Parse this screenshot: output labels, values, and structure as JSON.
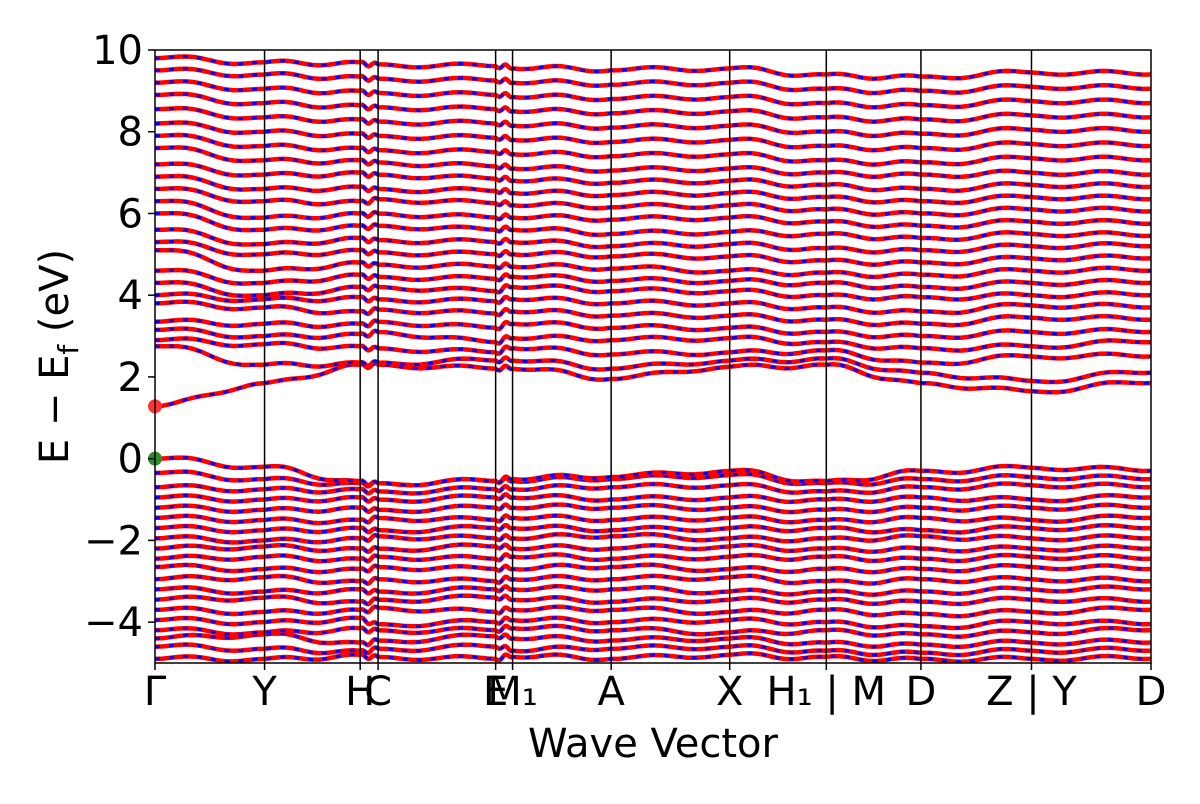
{
  "chart_data": {
    "type": "line",
    "title": "",
    "xlabel": "Wave Vector",
    "ylabel": "E − E_f (eV)",
    "ylabel_parts": {
      "main": "E − E",
      "sub": "f",
      "unit": "(eV)"
    },
    "ylim": [
      -5,
      10
    ],
    "yticks": [
      -4,
      -2,
      0,
      2,
      4,
      6,
      8,
      10
    ],
    "ytick_labels": [
      "−4",
      "−2",
      "0",
      "2",
      "4",
      "6",
      "8",
      "10"
    ],
    "xlim": [
      0,
      1
    ],
    "kpoints": [
      {
        "label": "Γ",
        "x": 0.0
      },
      {
        "label": "Y",
        "x": 0.11
      },
      {
        "label": "H",
        "x": 0.206
      },
      {
        "label": "C",
        "x": 0.224
      },
      {
        "label": "E",
        "x": 0.342
      },
      {
        "label": "M₁",
        "x": 0.359
      },
      {
        "label": "A",
        "x": 0.458
      },
      {
        "label": "X",
        "x": 0.577
      },
      {
        "label": "H₁ | M",
        "x": 0.674
      },
      {
        "label": "D",
        "x": 0.769
      },
      {
        "label": "Z | Y",
        "x": 0.88
      },
      {
        "label": "D",
        "x": 1.0
      }
    ],
    "vertical_lines_x": [
      0.11,
      0.206,
      0.224,
      0.342,
      0.359,
      0.458,
      0.577,
      0.674,
      0.769,
      0.88
    ],
    "series": [
      {
        "color": "#ff0000",
        "style": "solid"
      },
      {
        "color": "#0000ff",
        "style": "dashed"
      }
    ],
    "markers": [
      {
        "label": "CBM",
        "x": 0.0,
        "y": 1.28,
        "color": "#ff3333"
      },
      {
        "label": "VBM",
        "x": 0.0,
        "y": 0.0,
        "color": "#2e8b2e"
      }
    ],
    "bands": [
      [
        -4.9,
        -4.9,
        -4.8,
        -4.85,
        -4.9,
        -4.85,
        -4.9,
        -4.8,
        -4.85,
        -4.9,
        -4.9,
        -4.9
      ],
      [
        -4.6,
        -4.65,
        -4.7,
        -4.65,
        -4.6,
        -4.7,
        -4.65,
        -4.6,
        -4.7,
        -4.75,
        -4.7,
        -4.7
      ],
      [
        -4.4,
        -4.3,
        -4.5,
        -4.45,
        -4.35,
        -4.4,
        -4.45,
        -4.4,
        -4.5,
        -4.55,
        -4.5,
        -4.5
      ],
      [
        -4.2,
        -4.25,
        -4.15,
        -4.2,
        -4.2,
        -4.15,
        -4.2,
        -4.25,
        -4.2,
        -4.3,
        -4.25,
        -4.2
      ],
      [
        -3.95,
        -4.0,
        -3.9,
        -4.05,
        -4.0,
        -3.95,
        -4.0,
        -3.95,
        -4.0,
        -4.1,
        -4.0,
        -4.05
      ],
      [
        -3.7,
        -3.75,
        -3.7,
        -3.65,
        -3.75,
        -3.7,
        -3.7,
        -3.75,
        -3.7,
        -3.8,
        -3.75,
        -3.7
      ],
      [
        -3.45,
        -3.4,
        -3.5,
        -3.45,
        -3.4,
        -3.45,
        -3.5,
        -3.45,
        -3.45,
        -3.5,
        -3.45,
        -3.5
      ],
      [
        -3.2,
        -3.25,
        -3.2,
        -3.25,
        -3.2,
        -3.2,
        -3.2,
        -3.25,
        -3.25,
        -3.25,
        -3.2,
        -3.2
      ],
      [
        -2.95,
        -2.9,
        -3.0,
        -2.95,
        -3.0,
        -2.95,
        -2.95,
        -2.9,
        -3.0,
        -2.95,
        -2.95,
        -3.0
      ],
      [
        -2.65,
        -2.7,
        -2.7,
        -2.65,
        -2.7,
        -2.7,
        -2.65,
        -2.7,
        -2.7,
        -2.7,
        -2.65,
        -2.7
      ],
      [
        -2.45,
        -2.4,
        -2.45,
        -2.4,
        -2.45,
        -2.4,
        -2.45,
        -2.4,
        -2.4,
        -2.45,
        -2.4,
        -2.45
      ],
      [
        -2.2,
        -2.15,
        -2.2,
        -2.2,
        -2.15,
        -2.2,
        -2.2,
        -2.15,
        -2.2,
        -2.2,
        -2.2,
        -2.2
      ],
      [
        -1.95,
        -2.0,
        -1.95,
        -1.9,
        -1.95,
        -1.95,
        -1.9,
        -1.95,
        -1.95,
        -1.9,
        -1.95,
        -1.95
      ],
      [
        -1.7,
        -1.75,
        -1.7,
        -1.75,
        -1.7,
        -1.7,
        -1.75,
        -1.7,
        -1.7,
        -1.75,
        -1.7,
        -1.7
      ],
      [
        -1.45,
        -1.5,
        -1.5,
        -1.45,
        -1.5,
        -1.45,
        -1.5,
        -1.45,
        -1.5,
        -1.45,
        -1.5,
        -1.45
      ],
      [
        -1.2,
        -1.25,
        -1.2,
        -1.25,
        -1.2,
        -1.2,
        -1.2,
        -1.2,
        -1.25,
        -1.2,
        -1.2,
        -1.2
      ],
      [
        -0.95,
        -1.0,
        -0.95,
        -1.0,
        -0.95,
        -0.95,
        -1.0,
        -0.95,
        -1.0,
        -0.95,
        -1.0,
        -0.95
      ],
      [
        -0.7,
        -0.75,
        -0.75,
        -0.8,
        -0.75,
        -0.75,
        -0.7,
        -0.65,
        -0.8,
        -0.7,
        -0.65,
        -0.7
      ],
      [
        -0.35,
        -0.5,
        -0.6,
        -0.6,
        -0.55,
        -0.55,
        -0.5,
        -0.4,
        -0.6,
        -0.5,
        -0.45,
        -0.5
      ],
      [
        0.0,
        -0.2,
        -0.55,
        -0.6,
        -0.55,
        -0.5,
        -0.45,
        -0.3,
        -0.55,
        -0.3,
        -0.22,
        -0.3
      ],
      [
        1.28,
        1.85,
        2.3,
        2.3,
        2.2,
        2.2,
        1.95,
        2.25,
        2.3,
        1.85,
        1.65,
        1.85
      ],
      [
        2.75,
        2.3,
        2.35,
        2.35,
        2.4,
        2.4,
        2.2,
        2.4,
        2.45,
        2.1,
        1.9,
        2.1
      ],
      [
        2.9,
        2.8,
        2.75,
        2.7,
        2.6,
        2.7,
        2.55,
        2.6,
        2.65,
        2.35,
        2.5,
        2.5
      ],
      [
        3.15,
        3.0,
        3.05,
        3.1,
        2.85,
        2.95,
        2.9,
        2.95,
        2.85,
        2.7,
        2.75,
        2.85
      ],
      [
        3.35,
        3.3,
        3.3,
        3.35,
        3.2,
        3.3,
        3.2,
        3.2,
        3.1,
        3.0,
        3.1,
        3.1
      ],
      [
        3.8,
        3.7,
        3.6,
        3.65,
        3.55,
        3.6,
        3.5,
        3.5,
        3.4,
        3.3,
        3.45,
        3.4
      ],
      [
        4.0,
        3.9,
        3.95,
        3.9,
        3.85,
        3.9,
        3.8,
        3.8,
        3.7,
        3.6,
        3.75,
        3.7
      ],
      [
        4.3,
        4.0,
        4.2,
        4.2,
        4.1,
        4.2,
        4.1,
        4.1,
        4.0,
        3.95,
        4.0,
        4.0
      ],
      [
        4.6,
        4.3,
        4.5,
        4.45,
        4.4,
        4.45,
        4.35,
        4.35,
        4.3,
        4.2,
        4.3,
        4.3
      ],
      [
        5.1,
        4.6,
        4.8,
        4.75,
        4.7,
        4.7,
        4.65,
        4.6,
        4.55,
        4.5,
        4.6,
        4.6
      ],
      [
        5.3,
        5.0,
        5.1,
        5.05,
        5.0,
        5.0,
        4.95,
        4.95,
        4.85,
        4.8,
        4.9,
        4.9
      ],
      [
        5.6,
        5.25,
        5.4,
        5.35,
        5.3,
        5.3,
        5.2,
        5.25,
        5.15,
        5.1,
        5.2,
        5.2
      ],
      [
        6.0,
        5.6,
        5.7,
        5.7,
        5.6,
        5.6,
        5.5,
        5.55,
        5.5,
        5.4,
        5.5,
        5.45
      ],
      [
        6.3,
        5.9,
        6.0,
        6.0,
        5.9,
        5.9,
        5.85,
        5.9,
        5.8,
        5.7,
        5.8,
        5.75
      ],
      [
        6.6,
        6.3,
        6.3,
        6.35,
        6.25,
        6.2,
        6.15,
        6.2,
        6.1,
        6.0,
        6.1,
        6.05
      ],
      [
        6.9,
        6.6,
        6.65,
        6.6,
        6.55,
        6.5,
        6.45,
        6.5,
        6.4,
        6.3,
        6.4,
        6.35
      ],
      [
        7.2,
        6.95,
        7.0,
        6.95,
        6.85,
        6.8,
        6.75,
        6.8,
        6.7,
        6.6,
        6.7,
        6.65
      ],
      [
        7.6,
        7.3,
        7.3,
        7.25,
        7.15,
        7.1,
        7.05,
        7.1,
        7.0,
        6.95,
        7.0,
        6.95
      ],
      [
        7.9,
        7.65,
        7.6,
        7.55,
        7.5,
        7.45,
        7.4,
        7.45,
        7.3,
        7.25,
        7.35,
        7.3
      ],
      [
        8.2,
        8.0,
        7.95,
        7.9,
        7.85,
        7.8,
        7.75,
        7.8,
        7.65,
        7.6,
        7.7,
        7.65
      ],
      [
        8.55,
        8.35,
        8.3,
        8.25,
        8.2,
        8.15,
        8.1,
        8.15,
        8.0,
        7.95,
        8.05,
        8.0
      ],
      [
        8.9,
        8.7,
        8.65,
        8.6,
        8.55,
        8.5,
        8.45,
        8.5,
        8.35,
        8.3,
        8.4,
        8.35
      ],
      [
        9.2,
        9.05,
        9.0,
        8.95,
        8.9,
        8.85,
        8.8,
        8.85,
        8.7,
        8.65,
        8.75,
        8.7
      ],
      [
        9.5,
        9.4,
        9.35,
        9.3,
        9.25,
        9.2,
        9.15,
        9.2,
        9.05,
        9.0,
        9.1,
        9.05
      ],
      [
        9.8,
        9.7,
        9.7,
        9.65,
        9.6,
        9.55,
        9.5,
        9.55,
        9.4,
        9.35,
        9.45,
        9.4
      ]
    ]
  }
}
